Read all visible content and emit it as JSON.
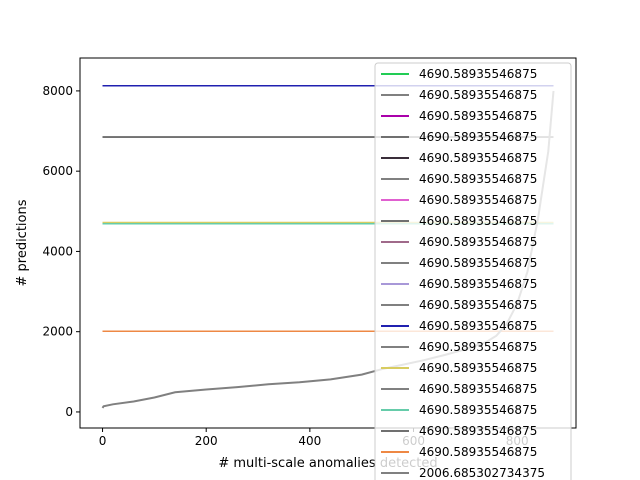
{
  "chart_data": {
    "type": "line",
    "title": "",
    "xlabel": "# multi-scale anomalies detected",
    "ylabel": "# predictions",
    "xlim": [
      -43.5,
      913.5
    ],
    "ylim": [
      -400,
      8820
    ],
    "xticks": [
      0,
      200,
      400,
      600,
      800
    ],
    "yticks": [
      0,
      2000,
      4000,
      6000,
      8000
    ],
    "xtick_labels": [
      "0",
      "200",
      "400",
      "600",
      "800"
    ],
    "ytick_labels": [
      "0",
      "2000",
      "4000",
      "6000",
      "8000"
    ],
    "grid": false,
    "legend_position": "upper right",
    "series": [
      {
        "name": "4690.58935546875",
        "color": "#22cc55",
        "x": [
          0,
          870
        ],
        "y": [
          4690.6,
          4690.6
        ]
      },
      {
        "name": "4690.58935546875",
        "color": "#808080",
        "x": [
          0,
          870
        ],
        "y": [
          4690.6,
          4690.6
        ]
      },
      {
        "name": "4690.58935546875",
        "color": "#aa00aa",
        "x": [
          0,
          870
        ],
        "y": [
          8130,
          8130
        ]
      },
      {
        "name": "4690.58935546875",
        "color": "#707070",
        "x": [
          0,
          870
        ],
        "y": [
          6850,
          6850
        ]
      },
      {
        "name": "4690.58935546875",
        "color": "#3a2e3a",
        "x": [
          0,
          870
        ],
        "y": [
          2010,
          2010
        ]
      },
      {
        "name": "4690.58935546875",
        "color": "#808080",
        "x": [
          0,
          870
        ],
        "y": [
          6850,
          6850
        ]
      },
      {
        "name": "4690.58935546875",
        "color": "#e060d0",
        "x": [
          0,
          870
        ],
        "y": [
          2010,
          2010
        ]
      },
      {
        "name": "4690.58935546875",
        "color": "#707070",
        "x": [
          0,
          870
        ],
        "y": [
          6850,
          6850
        ]
      },
      {
        "name": "4690.58935546875",
        "color": "#a06a8a",
        "x": [
          0,
          870
        ],
        "y": [
          2010,
          2010
        ]
      },
      {
        "name": "4690.58935546875",
        "color": "#808080",
        "x": [
          0,
          870
        ],
        "y": [
          6850,
          6850
        ]
      },
      {
        "name": "4690.58935546875",
        "color": "#a898d8",
        "x": [
          0,
          870
        ],
        "y": [
          8130,
          8130
        ]
      },
      {
        "name": "4690.58935546875",
        "color": "#808080",
        "x": [
          0,
          870
        ],
        "y": [
          6850,
          6850
        ]
      },
      {
        "name": "4690.58935546875",
        "color": "#2020b0",
        "x": [
          0,
          870
        ],
        "y": [
          8130,
          8130
        ]
      },
      {
        "name": "4690.58935546875",
        "color": "#808080",
        "x": [
          0,
          870
        ],
        "y": [
          6850,
          6850
        ]
      },
      {
        "name": "4690.58935546875",
        "color": "#d8cc60",
        "x": [
          0,
          870
        ],
        "y": [
          4720,
          4720
        ]
      },
      {
        "name": "4690.58935546875",
        "color": "#808080",
        "x": [
          0,
          870
        ],
        "y": [
          6850,
          6850
        ]
      },
      {
        "name": "4690.58935546875",
        "color": "#66ccaa",
        "x": [
          0,
          870
        ],
        "y": [
          4690.6,
          4690.6
        ]
      },
      {
        "name": "4690.58935546875",
        "color": "#707070",
        "x": [
          0,
          870
        ],
        "y": [
          6850,
          6850
        ]
      },
      {
        "name": "4690.58935546875",
        "color": "#ee8844",
        "x": [
          0,
          870
        ],
        "y": [
          2010,
          2010
        ]
      },
      {
        "name": "2006.685302734375",
        "color": "#808080",
        "x": [
          0,
          2,
          20,
          60,
          100,
          140,
          200,
          260,
          320,
          380,
          440,
          500,
          540,
          580,
          620,
          660,
          700,
          740,
          760,
          780,
          800,
          820,
          840,
          860,
          870
        ],
        "y": [
          100,
          140,
          190,
          260,
          360,
          490,
          560,
          620,
          690,
          740,
          810,
          930,
          1070,
          1180,
          1290,
          1420,
          1560,
          1740,
          1900,
          2200,
          2700,
          3500,
          4800,
          6500,
          8000
        ]
      }
    ]
  }
}
